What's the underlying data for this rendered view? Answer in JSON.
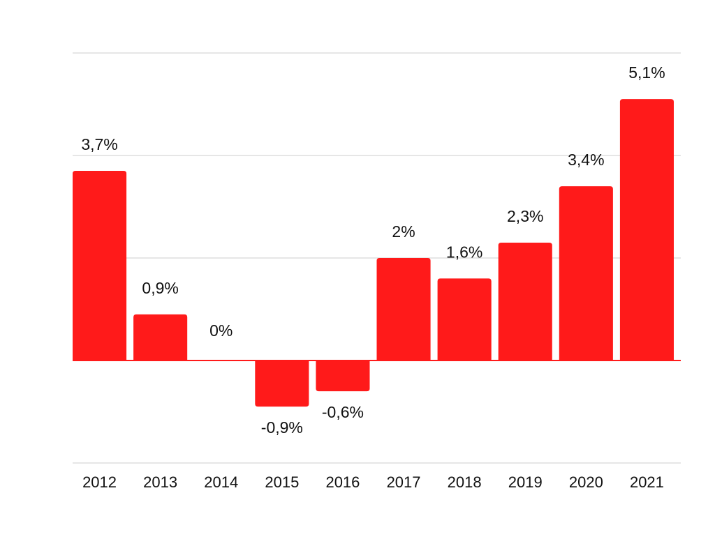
{
  "chart_data": {
    "type": "bar",
    "title": "",
    "xlabel": "",
    "ylabel": "",
    "categories": [
      "2012",
      "2013",
      "2014",
      "2015",
      "2016",
      "2017",
      "2018",
      "2019",
      "2020",
      "2021"
    ],
    "values": [
      3.7,
      0.9,
      0,
      -0.9,
      -0.6,
      2,
      1.6,
      2.3,
      3.4,
      5.1
    ],
    "data_labels": [
      "3,7%",
      "0,9%",
      "0%",
      "-0,9%",
      "-0,6%",
      "2%",
      "1,6%",
      "2,3%",
      "3,4%",
      "5,1%"
    ],
    "ylim": [
      -2,
      6
    ],
    "gridlines": [
      -2,
      2,
      4,
      6
    ],
    "grid": true,
    "legend": "none",
    "bar_color": "#ff1a1a",
    "gridline_color": "#cccccc",
    "baseline_color": "#ff1a1a",
    "text_color": "#111111"
  }
}
